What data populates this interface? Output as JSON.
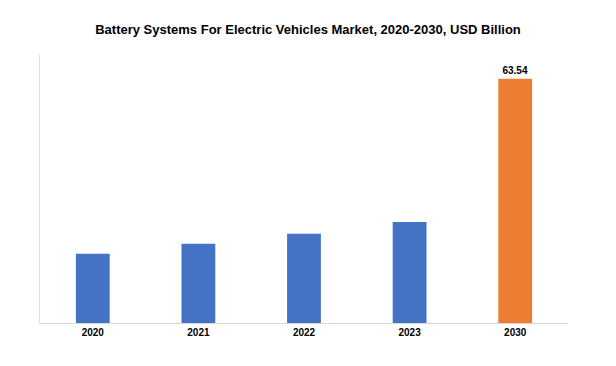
{
  "chart_data": {
    "type": "bar",
    "title": "Battery Systems For Electric Vehicles Market, 2020-2030, USD Billion",
    "categories": [
      "2020",
      "2021",
      "2022",
      "2023",
      "2030"
    ],
    "values": [
      18.0,
      20.6,
      23.2,
      26.3,
      63.54
    ],
    "value_labels": [
      null,
      null,
      null,
      null,
      "63.54"
    ],
    "colors": [
      "#4472c4",
      "#4472c4",
      "#4472c4",
      "#4472c4",
      "#ed7d31"
    ],
    "ylim": [
      0,
      70
    ],
    "yticks": [],
    "grid": false,
    "tick_labels": "x"
  }
}
